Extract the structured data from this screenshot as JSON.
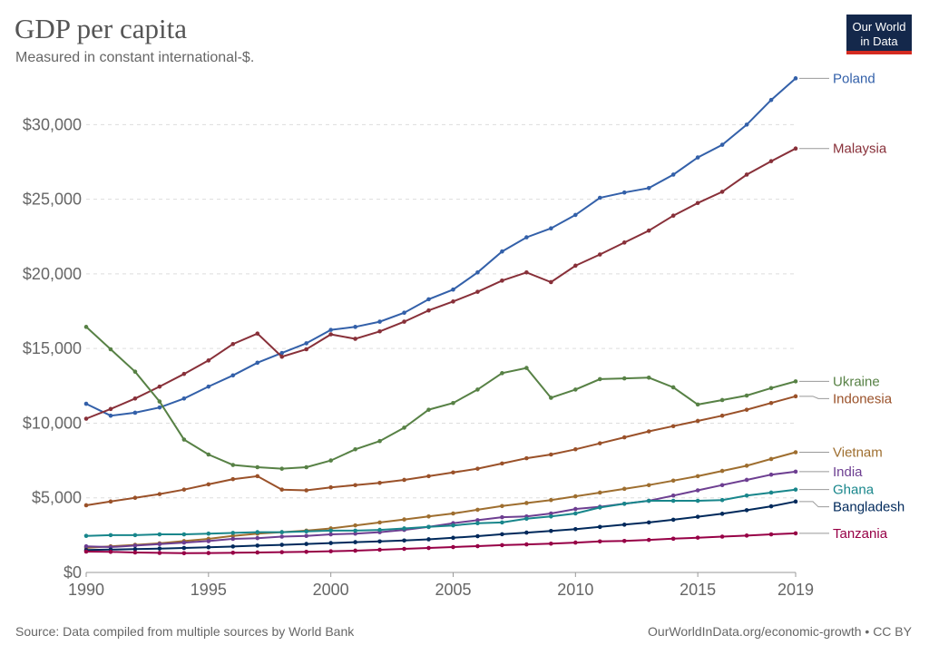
{
  "header": {
    "title": "GDP per capita",
    "subtitle": "Measured in constant international-$.",
    "logo_line1": "Our World",
    "logo_line2": "in Data"
  },
  "footer": {
    "source": "Source: Data compiled from multiple sources by World Bank",
    "credit": "OurWorldInData.org/economic-growth • CC BY"
  },
  "chart_data": {
    "type": "line",
    "title": "GDP per capita",
    "subtitle": "Measured in constant international-$.",
    "xlabel": "",
    "ylabel": "",
    "xlim": [
      1990,
      2019
    ],
    "ylim": [
      0,
      33000
    ],
    "x_ticks": [
      1990,
      1995,
      2000,
      2005,
      2010,
      2015,
      2019
    ],
    "x_tick_labels": [
      "1990",
      "1995",
      "2000",
      "2005",
      "2010",
      "2015",
      "2019"
    ],
    "y_ticks": [
      0,
      5000,
      10000,
      15000,
      20000,
      25000,
      30000
    ],
    "y_tick_labels": [
      "$0",
      "$5,000",
      "$10,000",
      "$15,000",
      "$20,000",
      "$25,000",
      "$30,000"
    ],
    "grid": "horizontal dashed",
    "legend": "line-end labels at right",
    "x": [
      1990,
      1991,
      1992,
      1993,
      1994,
      1995,
      1996,
      1997,
      1998,
      1999,
      2000,
      2001,
      2002,
      2003,
      2004,
      2005,
      2006,
      2007,
      2008,
      2009,
      2010,
      2011,
      2012,
      2013,
      2014,
      2015,
      2016,
      2017,
      2018,
      2019
    ],
    "series": [
      {
        "name": "Poland",
        "color": "#3360a9",
        "values": [
          11300,
          10500,
          10700,
          11050,
          11650,
          12450,
          13200,
          14050,
          14700,
          15350,
          16250,
          16450,
          16800,
          17400,
          18300,
          18950,
          20100,
          21500,
          22450,
          23050,
          23950,
          25100,
          25450,
          25750,
          26650,
          27800,
          28650,
          30000,
          31650,
          33100
        ]
      },
      {
        "name": "Malaysia",
        "color": "#883039",
        "values": [
          10300,
          10950,
          11650,
          12450,
          13300,
          14200,
          15300,
          16000,
          14450,
          14950,
          15950,
          15650,
          16150,
          16800,
          17550,
          18150,
          18800,
          19550,
          20100,
          19450,
          20550,
          21300,
          22100,
          22900,
          23900,
          24750,
          25500,
          26650,
          27550,
          28400
        ]
      },
      {
        "name": "Ukraine",
        "color": "#578145",
        "values": [
          16450,
          14950,
          13450,
          11450,
          8900,
          7900,
          7200,
          7050,
          6950,
          7050,
          7500,
          8250,
          8800,
          9700,
          10900,
          11350,
          12250,
          13350,
          13700,
          11700,
          12250,
          12950,
          13000,
          13050,
          12400,
          11250,
          11550,
          11850,
          12350,
          12800
        ]
      },
      {
        "name": "Indonesia",
        "color": "#9a5129",
        "values": [
          4500,
          4750,
          5000,
          5250,
          5550,
          5900,
          6250,
          6450,
          5550,
          5500,
          5700,
          5850,
          6000,
          6200,
          6450,
          6700,
          6950,
          7300,
          7650,
          7900,
          8250,
          8650,
          9050,
          9450,
          9800,
          10150,
          10500,
          10900,
          11350,
          11800
        ]
      },
      {
        "name": "Vietnam",
        "color": "#9e6e2f",
        "values": [
          1650,
          1750,
          1850,
          1950,
          2100,
          2250,
          2450,
          2600,
          2700,
          2800,
          2950,
          3150,
          3350,
          3550,
          3750,
          3950,
          4200,
          4450,
          4650,
          4850,
          5100,
          5350,
          5600,
          5850,
          6150,
          6450,
          6800,
          7150,
          7600,
          8050
        ]
      },
      {
        "name": "India",
        "color": "#6d3e91",
        "values": [
          1750,
          1700,
          1800,
          1900,
          2000,
          2100,
          2250,
          2300,
          2400,
          2450,
          2550,
          2600,
          2700,
          2850,
          3050,
          3300,
          3500,
          3700,
          3750,
          3950,
          4250,
          4400,
          4600,
          4800,
          5150,
          5500,
          5850,
          6200,
          6550,
          6750
        ]
      },
      {
        "name": "Ghana",
        "color": "#18868b",
        "values": [
          2450,
          2500,
          2500,
          2550,
          2550,
          2600,
          2650,
          2700,
          2700,
          2750,
          2800,
          2800,
          2850,
          2950,
          3050,
          3150,
          3300,
          3350,
          3600,
          3750,
          3950,
          4350,
          4600,
          4800,
          4800,
          4800,
          4850,
          5150,
          5350,
          5550
        ]
      },
      {
        "name": "Bangladesh",
        "color": "#00295b",
        "values": [
          1500,
          1530,
          1560,
          1600,
          1640,
          1690,
          1740,
          1800,
          1850,
          1910,
          1970,
          2030,
          2080,
          2140,
          2220,
          2320,
          2430,
          2560,
          2670,
          2780,
          2900,
          3050,
          3200,
          3350,
          3530,
          3730,
          3930,
          4170,
          4430,
          4750
        ]
      },
      {
        "name": "Tanzania",
        "color": "#970046",
        "values": [
          1400,
          1380,
          1340,
          1310,
          1290,
          1300,
          1320,
          1340,
          1360,
          1380,
          1420,
          1460,
          1520,
          1580,
          1640,
          1700,
          1760,
          1830,
          1880,
          1930,
          2000,
          2080,
          2110,
          2180,
          2260,
          2330,
          2400,
          2470,
          2550,
          2620
        ]
      }
    ]
  }
}
